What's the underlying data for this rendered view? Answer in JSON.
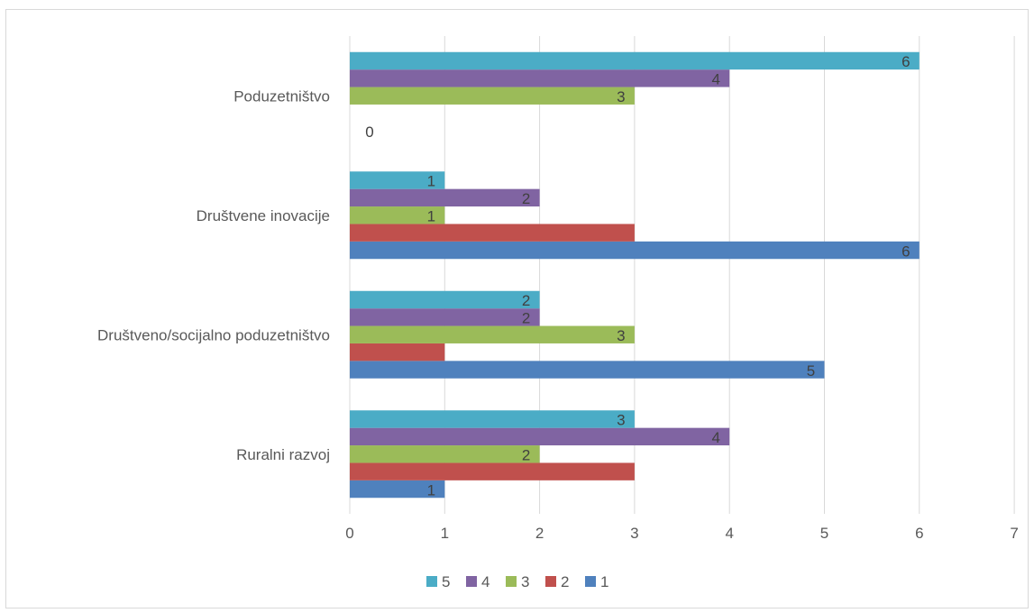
{
  "chart_data": {
    "type": "bar",
    "orientation": "horizontal",
    "title": "",
    "xlabel": "",
    "ylabel": "",
    "xlim": [
      0,
      7
    ],
    "x_ticks": [
      "0",
      "1",
      "2",
      "3",
      "4",
      "5",
      "6",
      "7"
    ],
    "grid": "vertical",
    "legend_position": "bottom",
    "categories": [
      "Ruralni razvoj",
      "Društveno/socijalno poduzetništvo",
      "Društvene inovacije",
      "Poduzetništvo"
    ],
    "series": [
      {
        "name": "1",
        "color": "#4F81BD",
        "values": [
          1,
          5,
          6,
          0
        ],
        "labels": [
          "1",
          "5",
          "6",
          "0"
        ]
      },
      {
        "name": "2",
        "color": "#C0504D",
        "values": [
          3,
          1,
          3,
          0
        ],
        "labels": [
          "",
          "",
          "",
          ""
        ]
      },
      {
        "name": "3",
        "color": "#9BBB59",
        "values": [
          2,
          3,
          1,
          3
        ],
        "labels": [
          "2",
          "3",
          "1",
          "3"
        ]
      },
      {
        "name": "4",
        "color": "#8064A2",
        "values": [
          4,
          2,
          2,
          4
        ],
        "labels": [
          "4",
          "2",
          "2",
          "4"
        ]
      },
      {
        "name": "5",
        "color": "#4BACC6",
        "values": [
          3,
          2,
          1,
          6
        ],
        "labels": [
          "3",
          "2",
          "1",
          "6"
        ]
      }
    ],
    "legend_order": [
      "5",
      "4",
      "3",
      "2",
      "1"
    ]
  }
}
